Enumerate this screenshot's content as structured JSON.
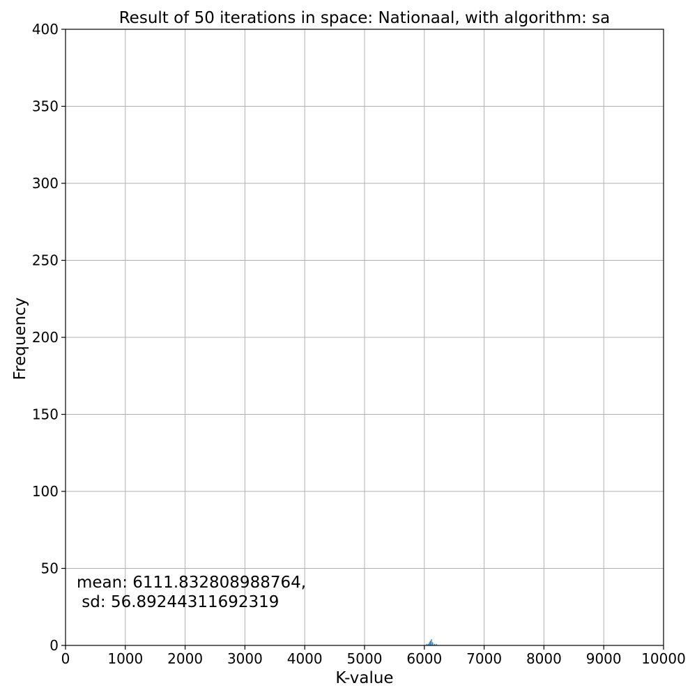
{
  "chart_data": {
    "type": "bar",
    "title": "Result of 50 iterations in space: Nationaal, with algorithm: sa",
    "xlabel": "K-value",
    "ylabel": "Frequency",
    "xlim": [
      0,
      10000
    ],
    "ylim": [
      0,
      400
    ],
    "xticks": [
      "0",
      "1000",
      "2000",
      "3000",
      "4000",
      "5000",
      "6000",
      "7000",
      "8000",
      "9000",
      "10000"
    ],
    "yticks": [
      "0",
      "50",
      "100",
      "150",
      "200",
      "250",
      "300",
      "350",
      "400"
    ],
    "grid": true,
    "bar_color": "#1f77b4",
    "bins": [
      {
        "x": 6040,
        "value": 1
      },
      {
        "x": 6065,
        "value": 1
      },
      {
        "x": 6085,
        "value": 2
      },
      {
        "x": 6100,
        "value": 3
      },
      {
        "x": 6120,
        "value": 4
      },
      {
        "x": 6140,
        "value": 2
      },
      {
        "x": 6170,
        "value": 1
      },
      {
        "x": 6200,
        "value": 1
      }
    ],
    "bin_width": 15,
    "annotation": {
      "line1": "mean: 6111.832808988764,",
      "line2": " sd: 56.89244311692319"
    }
  }
}
